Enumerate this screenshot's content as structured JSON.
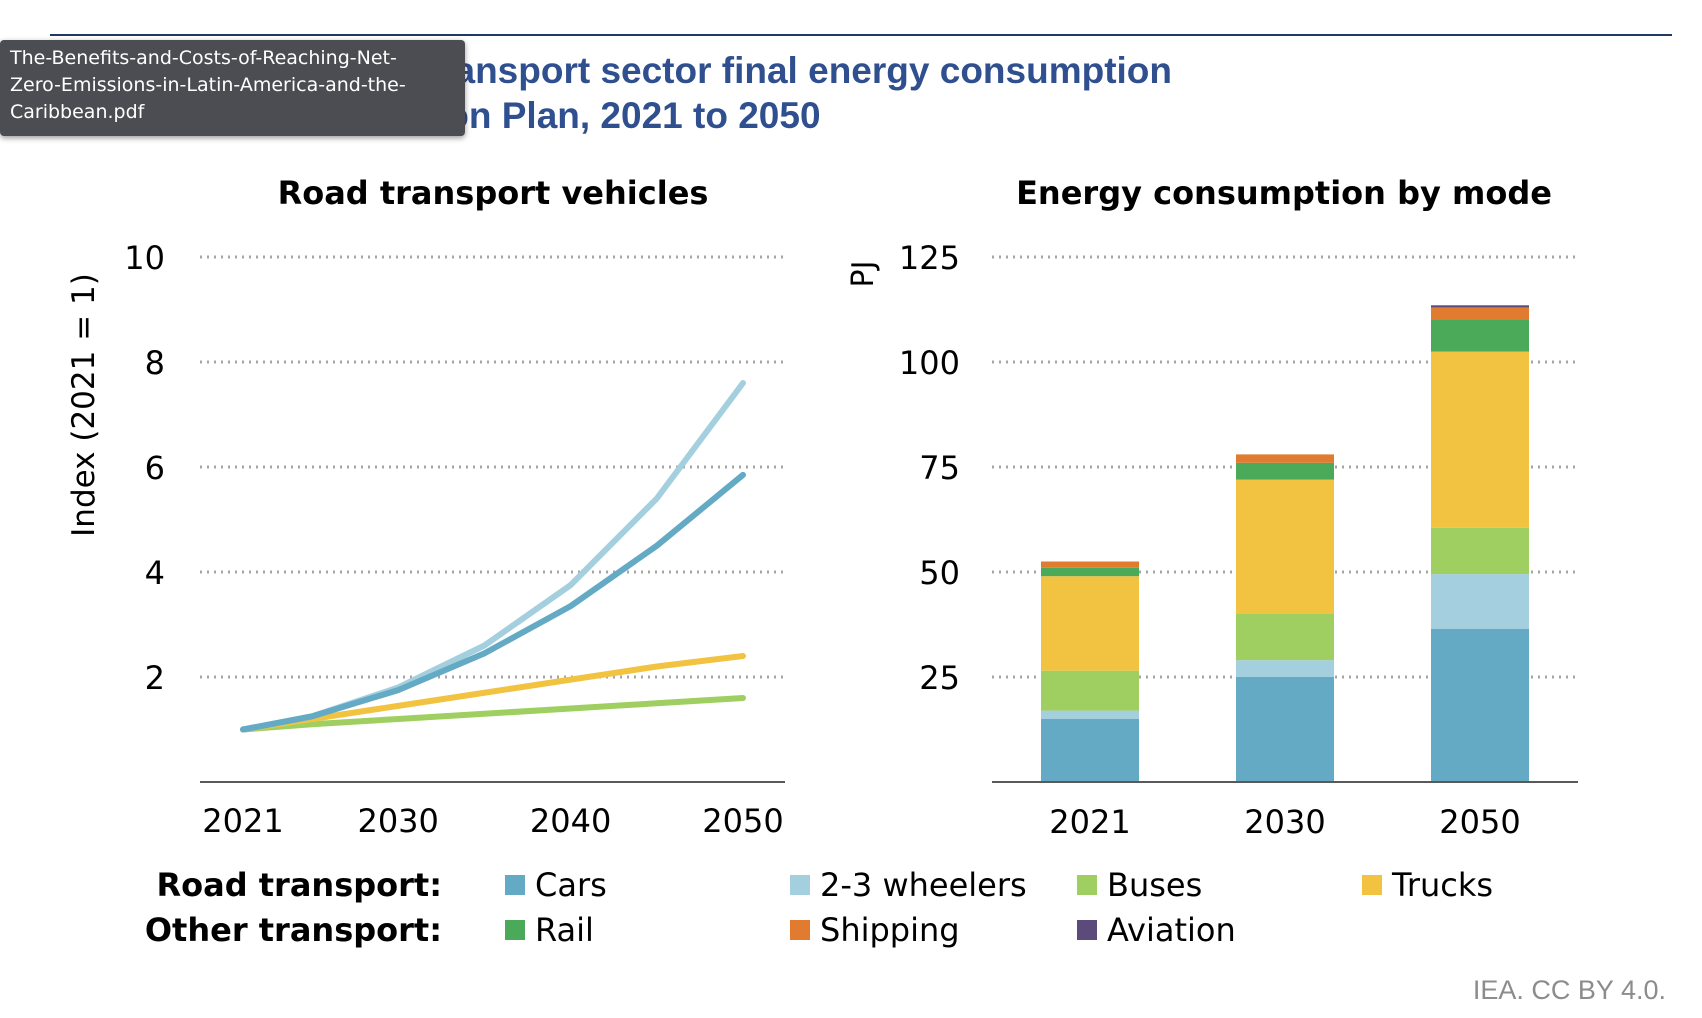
{
  "figure": {
    "title": "Road transport vehicles and transport sector final energy consumption by mode in the Energy Transition Plan, 2021 to 2050",
    "title_visible": "nsport vehicles and transport sector final energy consumption\nin the Energy Transition Plan, 2021 to 2050",
    "source": "IEA. CC BY 4.0."
  },
  "tooltip": {
    "text": "The-Benefits-and-Costs-of-Reaching-Net-\nZero-Emissions-in-Latin-America-and-the-\nCaribbean.pdf"
  },
  "colors": {
    "title": "#2f4f8f",
    "grid": "#a6a6a6",
    "axis": "#595959"
  },
  "legend": {
    "road_label": "Road transport:",
    "other_label": "Other transport:",
    "road_items": [
      {
        "name": "Cars",
        "color": "#64aac4"
      },
      {
        "name": "2-3 wheelers",
        "color": "#a4cfde"
      },
      {
        "name": "Buses",
        "color": "#9fcf60"
      },
      {
        "name": "Trucks",
        "color": "#f2c340"
      }
    ],
    "other_items": [
      {
        "name": "Rail",
        "color": "#4aaa5a"
      },
      {
        "name": "Shipping",
        "color": "#e07b30"
      },
      {
        "name": "Aviation",
        "color": "#5b4a7a"
      }
    ]
  },
  "chart_data": [
    {
      "type": "line",
      "title": "Road transport vehicles",
      "ylabel": "Index (2021 = 1)",
      "xlabel": "",
      "x": [
        2021,
        2025,
        2030,
        2035,
        2040,
        2045,
        2050
      ],
      "xticks": [
        2021,
        2030,
        2040,
        2050
      ],
      "ylim": [
        0,
        10
      ],
      "yticks": [
        2,
        4,
        6,
        8,
        10
      ],
      "grid": true,
      "series": [
        {
          "name": "Cars",
          "color": "#64aac4",
          "values": [
            1.0,
            1.25,
            1.75,
            2.45,
            3.35,
            4.5,
            5.85
          ]
        },
        {
          "name": "2-3 wheelers",
          "color": "#a4cfde",
          "values": [
            1.0,
            1.25,
            1.8,
            2.6,
            3.75,
            5.4,
            7.6
          ]
        },
        {
          "name": "Buses",
          "color": "#9fcf60",
          "values": [
            1.0,
            1.1,
            1.2,
            1.3,
            1.4,
            1.5,
            1.6
          ]
        },
        {
          "name": "Trucks",
          "color": "#f2c340",
          "values": [
            1.0,
            1.2,
            1.45,
            1.7,
            1.95,
            2.2,
            2.4
          ]
        }
      ]
    },
    {
      "type": "bar",
      "stacked": true,
      "title": "Energy consumption by mode",
      "ylabel": "PJ",
      "xlabel": "",
      "categories": [
        "2021",
        "2030",
        "2050"
      ],
      "ylim": [
        0,
        125
      ],
      "yticks": [
        25,
        50,
        75,
        100,
        125
      ],
      "grid": true,
      "series": [
        {
          "name": "Cars",
          "color": "#64aac4",
          "values": [
            15,
            25,
            36.5
          ]
        },
        {
          "name": "2-3 wheelers",
          "color": "#a4cfde",
          "values": [
            2,
            4,
            13
          ]
        },
        {
          "name": "Buses",
          "color": "#9fcf60",
          "values": [
            9.5,
            11,
            11
          ]
        },
        {
          "name": "Trucks",
          "color": "#f2c340",
          "values": [
            22.5,
            32,
            42
          ]
        },
        {
          "name": "Rail",
          "color": "#4aaa5a",
          "values": [
            2,
            4,
            7.5
          ]
        },
        {
          "name": "Shipping",
          "color": "#e07b30",
          "values": [
            1.5,
            2,
            3
          ]
        },
        {
          "name": "Aviation",
          "color": "#5b4a7a",
          "values": [
            0,
            0,
            0.5
          ]
        }
      ]
    }
  ]
}
